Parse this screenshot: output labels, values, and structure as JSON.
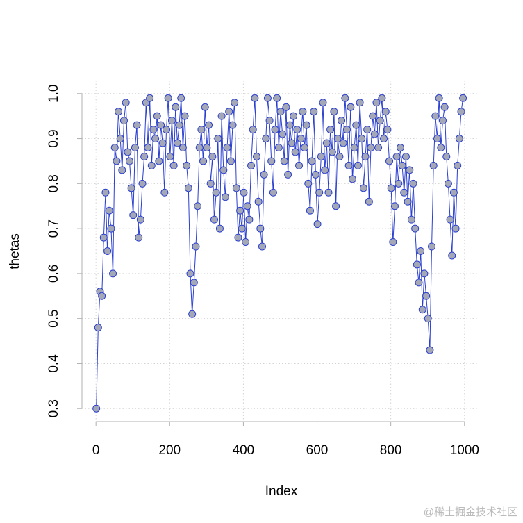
{
  "chart_data": {
    "type": "line",
    "xlabel": "Index",
    "ylabel": "thetas",
    "watermark": "@稀土掘金技术社区",
    "xlim": [
      -38,
      1040
    ],
    "ylim": [
      0.271,
      1.029
    ],
    "xticks": [
      0,
      200,
      400,
      600,
      800,
      1000
    ],
    "yticks": [
      0.3,
      0.4,
      0.5,
      0.6,
      0.7,
      0.8,
      0.9,
      {
        "value": 1,
        "label": "1.0"
      }
    ],
    "grid": true,
    "series": [
      {
        "color": "#2a3fd0",
        "marker_fill": "#a4a7b6",
        "x": [
          1,
          6,
          11,
          16,
          21,
          26,
          31,
          36,
          41,
          46,
          51,
          56,
          61,
          66,
          71,
          76,
          81,
          86,
          91,
          96,
          101,
          106,
          111,
          116,
          121,
          126,
          131,
          136,
          141,
          146,
          151,
          156,
          161,
          166,
          171,
          176,
          181,
          186,
          191,
          196,
          201,
          206,
          211,
          216,
          221,
          226,
          231,
          236,
          241,
          246,
          251,
          256,
          261,
          266,
          271,
          276,
          281,
          286,
          291,
          296,
          301,
          306,
          311,
          316,
          321,
          326,
          331,
          336,
          341,
          346,
          351,
          356,
          361,
          366,
          371,
          376,
          381,
          386,
          391,
          396,
          401,
          406,
          411,
          416,
          421,
          426,
          431,
          436,
          441,
          446,
          451,
          456,
          461,
          466,
          471,
          476,
          481,
          486,
          491,
          496,
          501,
          506,
          511,
          516,
          521,
          526,
          531,
          536,
          541,
          546,
          551,
          556,
          561,
          566,
          571,
          576,
          581,
          586,
          591,
          596,
          601,
          606,
          611,
          616,
          621,
          626,
          631,
          636,
          641,
          646,
          651,
          656,
          661,
          666,
          671,
          676,
          681,
          686,
          691,
          696,
          701,
          706,
          711,
          716,
          721,
          726,
          731,
          736,
          741,
          746,
          751,
          756,
          761,
          766,
          771,
          776,
          781,
          786,
          791,
          796,
          801,
          806,
          811,
          816,
          821,
          826,
          831,
          836,
          841,
          846,
          851,
          856,
          861,
          866,
          871,
          876,
          881,
          886,
          891,
          896,
          901,
          906,
          911,
          916,
          921,
          926,
          931,
          936,
          941,
          946,
          951,
          956,
          961,
          966,
          971,
          976,
          981,
          986,
          991,
          996
        ],
        "values": [
          0.3,
          0.48,
          0.56,
          0.55,
          0.68,
          0.78,
          0.65,
          0.74,
          0.7,
          0.6,
          0.88,
          0.85,
          0.96,
          0.9,
          0.83,
          0.94,
          0.98,
          0.87,
          0.85,
          0.79,
          0.73,
          0.88,
          0.93,
          0.68,
          0.72,
          0.8,
          0.86,
          0.98,
          0.88,
          0.99,
          0.84,
          0.92,
          0.9,
          0.95,
          0.85,
          0.93,
          0.89,
          0.78,
          0.92,
          0.99,
          0.86,
          0.94,
          0.84,
          0.97,
          0.89,
          0.93,
          0.99,
          0.88,
          0.95,
          0.84,
          0.79,
          0.6,
          0.51,
          0.58,
          0.66,
          0.75,
          0.88,
          0.92,
          0.85,
          0.97,
          0.88,
          0.93,
          0.8,
          0.86,
          0.72,
          0.78,
          0.9,
          0.7,
          0.95,
          0.83,
          0.77,
          0.88,
          0.96,
          0.85,
          0.93,
          0.98,
          0.79,
          0.68,
          0.74,
          0.7,
          0.78,
          0.67,
          0.75,
          0.72,
          0.84,
          0.92,
          0.99,
          0.86,
          0.76,
          0.7,
          0.66,
          0.82,
          0.9,
          0.99,
          0.94,
          0.85,
          0.78,
          0.92,
          0.99,
          0.88,
          0.96,
          0.91,
          0.85,
          0.97,
          0.82,
          0.93,
          0.89,
          0.95,
          0.87,
          0.92,
          0.84,
          0.9,
          0.96,
          0.88,
          0.93,
          0.8,
          0.74,
          0.85,
          0.96,
          0.82,
          0.71,
          0.78,
          0.86,
          0.98,
          0.83,
          0.89,
          0.78,
          0.92,
          0.87,
          0.96,
          0.75,
          0.9,
          0.86,
          0.94,
          0.89,
          0.99,
          0.92,
          0.84,
          0.97,
          0.81,
          0.88,
          0.93,
          0.84,
          0.98,
          0.9,
          0.79,
          0.86,
          0.92,
          0.76,
          0.88,
          0.95,
          0.91,
          0.98,
          0.88,
          0.94,
          0.99,
          0.9,
          0.96,
          0.92,
          0.85,
          0.79,
          0.67,
          0.75,
          0.86,
          0.8,
          0.88,
          0.84,
          0.78,
          0.86,
          0.76,
          0.83,
          0.72,
          0.8,
          0.7,
          0.62,
          0.58,
          0.65,
          0.52,
          0.6,
          0.55,
          0.5,
          0.43,
          0.66,
          0.84,
          0.95,
          0.9,
          0.99,
          0.88,
          0.94,
          0.97,
          0.86,
          0.8,
          0.72,
          0.64,
          0.78,
          0.7,
          0.84,
          0.9,
          0.96,
          0.99
        ]
      }
    ]
  }
}
